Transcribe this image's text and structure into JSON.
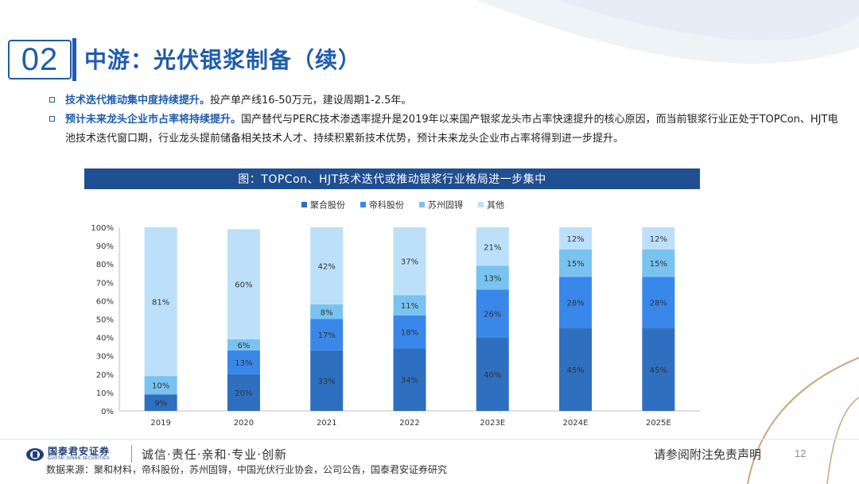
{
  "header": {
    "section_number": "02",
    "title": "中游：光伏银浆制备（续）"
  },
  "bullets": [
    {
      "highlight": "技术迭代推动集中度持续提升。",
      "text": "投产单产线16-50万元，建设周期1-2.5年。"
    },
    {
      "highlight": "预计未来龙头企业市占率将持续提升。",
      "text": "国产替代与PERC技术渗透率提升是2019年以来国产银浆龙头市占率快速提升的核心原因，而当前银浆行业正处于TOPCon、HJT电池技术迭代窗口期，行业龙头提前储备相关技术人才、持续积累新技术优势，预计未来龙头企业市占率将得到进一步提升。"
    }
  ],
  "chart_data": {
    "type": "bar",
    "stacked": true,
    "title": "图：TOPCon、HJT技术迭代或推动银浆行业格局进一步集中",
    "categories": [
      "2019",
      "2020",
      "2021",
      "2022",
      "2023E",
      "2024E",
      "2025E"
    ],
    "series": [
      {
        "name": "聚合股份",
        "color": "#2e6fc0",
        "values": [
          9,
          20,
          33,
          34,
          40,
          45,
          45
        ],
        "labels": [
          "9%",
          "20%",
          "33%",
          "34%",
          "40%",
          "45%",
          "45%"
        ]
      },
      {
        "name": "帝科股份",
        "color": "#3a87ea",
        "values": [
          0,
          13,
          17,
          18,
          26,
          28,
          28
        ],
        "labels": [
          "",
          "13%",
          "17%",
          "18%",
          "26%",
          "28%",
          "28%"
        ]
      },
      {
        "name": "苏州固锝",
        "color": "#78c3ef",
        "values": [
          10,
          6,
          8,
          11,
          13,
          15,
          15
        ],
        "labels": [
          "10%",
          "6%",
          "8%",
          "11%",
          "13%",
          "15%",
          "15%"
        ]
      },
      {
        "name": "其他",
        "color": "#bde0fa",
        "values": [
          81,
          60,
          42,
          37,
          21,
          12,
          12
        ],
        "labels": [
          "81%",
          "60%",
          "42%",
          "37%",
          "21%",
          "12%",
          "12%"
        ]
      }
    ],
    "yticks": [
      "0%",
      "10%",
      "20%",
      "30%",
      "40%",
      "50%",
      "60%",
      "70%",
      "80%",
      "90%",
      "100%"
    ],
    "ylim": [
      0,
      100
    ],
    "legend_position": "top-center"
  },
  "footer": {
    "logo_name": "国泰君安证券",
    "logo_sub": "GUOTAI JUNAN SECURITIES",
    "slogan": "诚信·责任·亲和·专业·创新",
    "disclaimer": "请参阅附注免责声明",
    "page_number": "12",
    "source": "数据来源：聚和材料，帝科股份，苏州固锝，中国光伏行业协会，公司公告，国泰君安证券研究"
  }
}
